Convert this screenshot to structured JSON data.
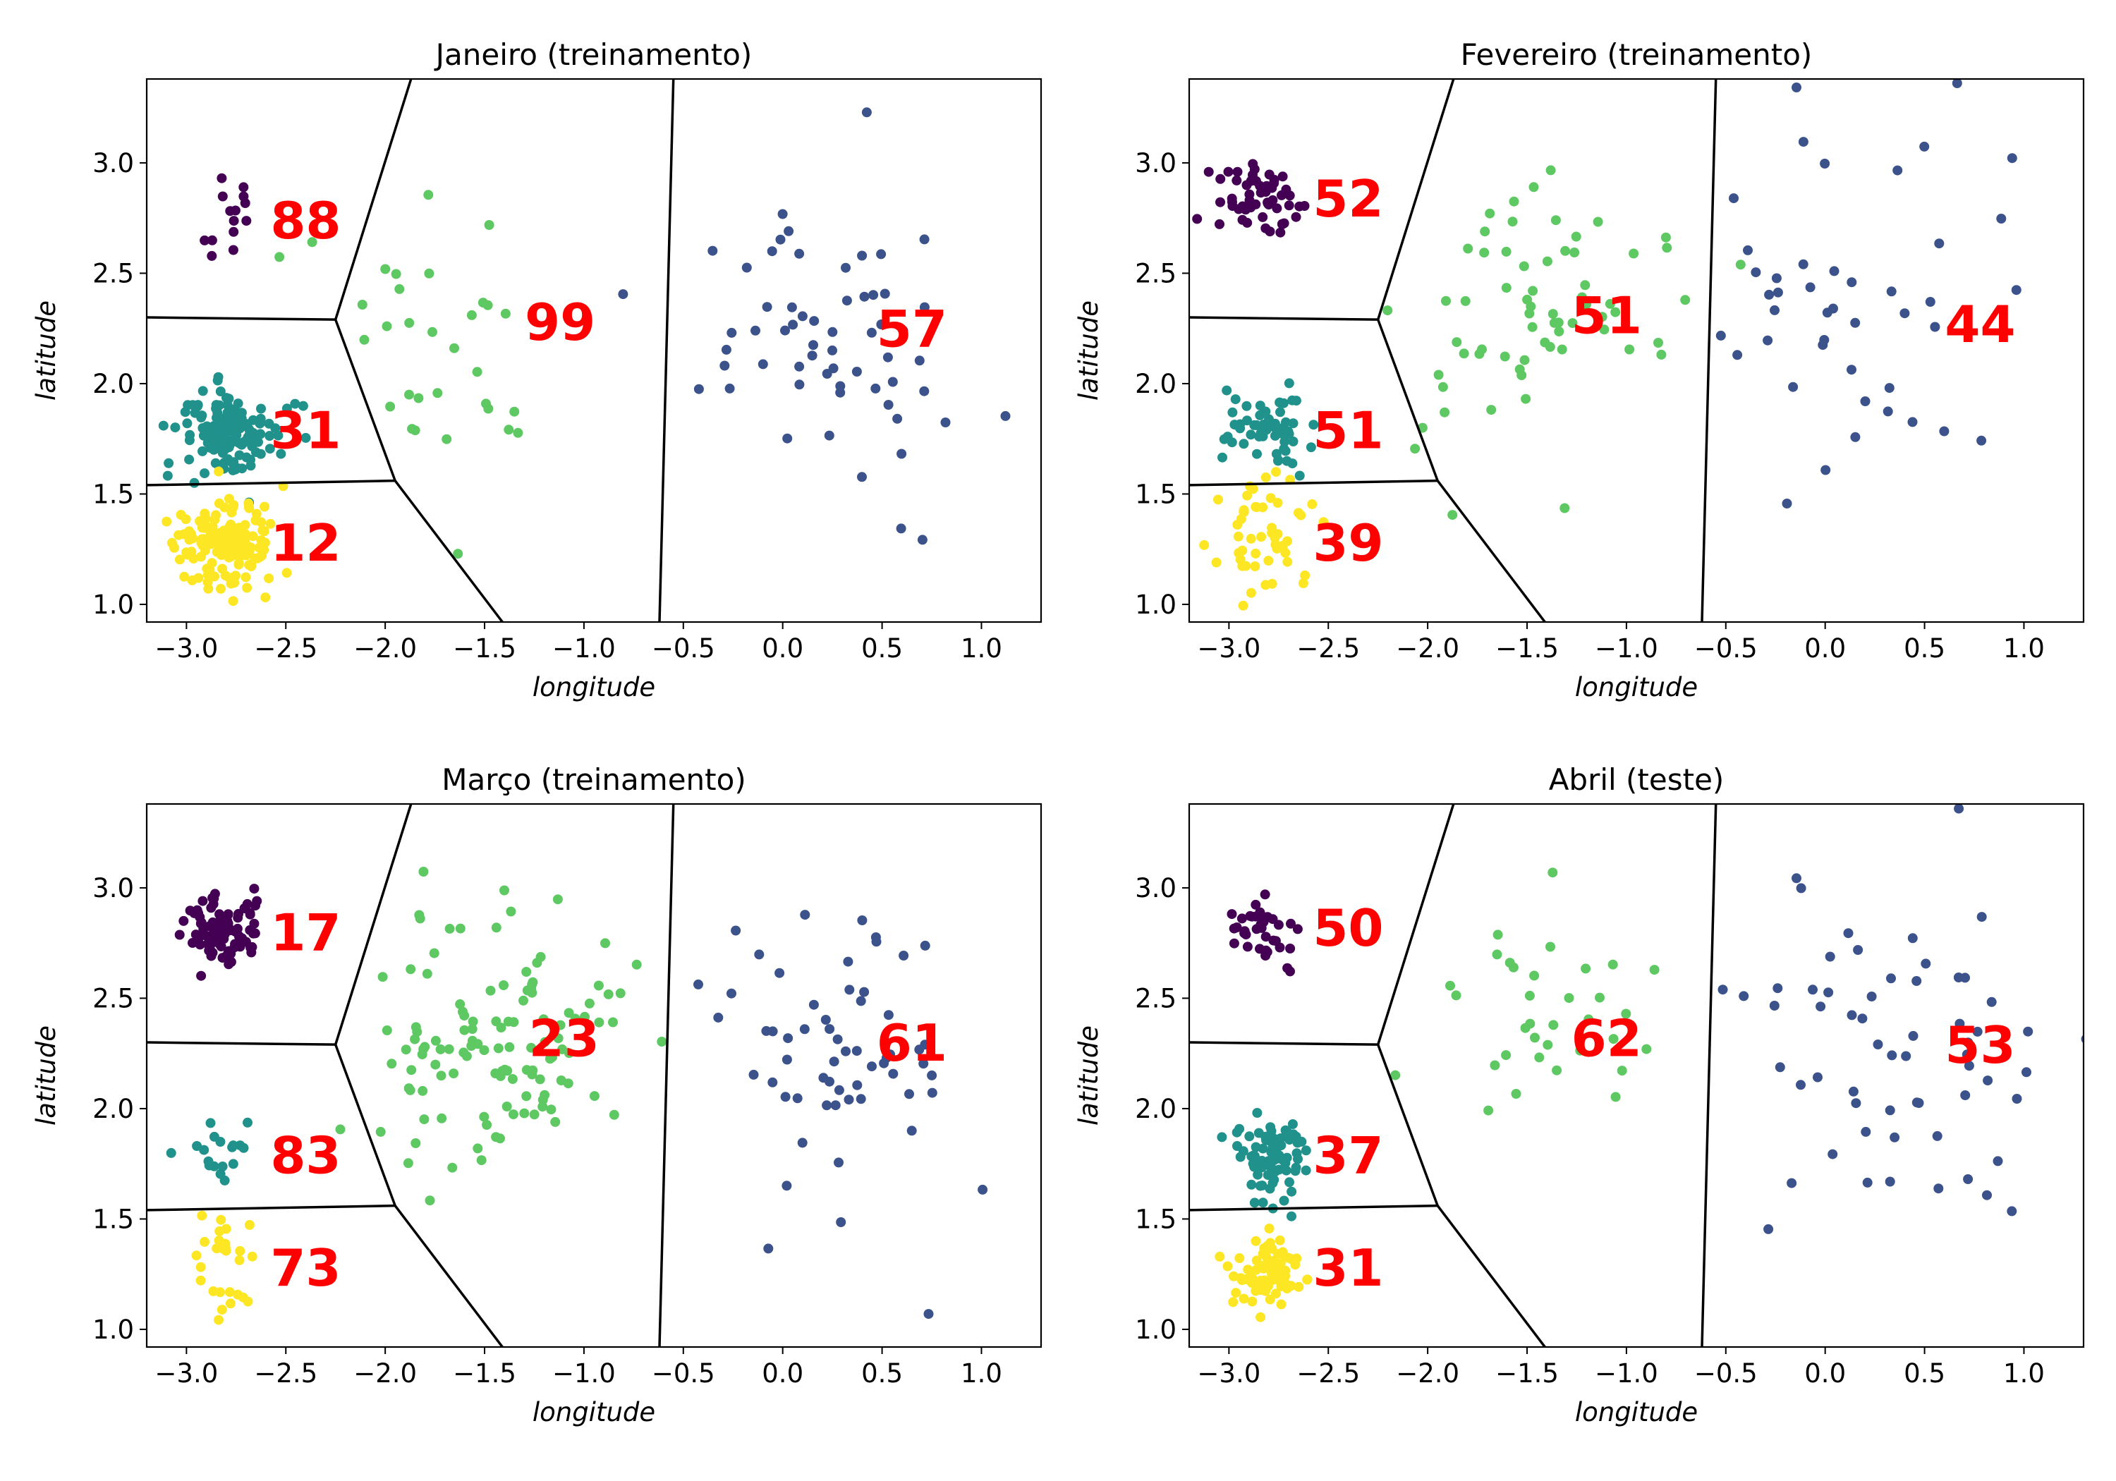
{
  "colors": {
    "cluster_0": "#440154",
    "cluster_1": "#3b528b",
    "cluster_2": "#21918c",
    "cluster_3": "#5ec962",
    "cluster_4": "#fde725",
    "boundary": "#000000",
    "count_label": "#ff0000"
  },
  "chart_data": [
    {
      "type": "scatter",
      "title": "Janeiro (treinamento)",
      "xlabel": "longitude",
      "ylabel": "latitude",
      "xlim": [
        -3.2,
        1.3
      ],
      "ylim": [
        0.92,
        3.38
      ],
      "xticks": [
        "−3.0",
        "−2.5",
        "−2.0",
        "−1.5",
        "−1.0",
        "−0.5",
        "0.0",
        "0.5",
        "1.0"
      ],
      "yticks": [
        "1.0",
        "1.5",
        "2.0",
        "2.5",
        "3.0"
      ],
      "grid": false,
      "boundaries": [
        [
          [
            -3.2,
            2.3
          ],
          [
            -2.25,
            2.29
          ]
        ],
        [
          [
            -2.25,
            2.29
          ],
          [
            -1.87,
            3.38
          ]
        ],
        [
          [
            -2.25,
            2.29
          ],
          [
            -1.95,
            1.56
          ]
        ],
        [
          [
            -3.2,
            1.54
          ],
          [
            -1.95,
            1.56
          ]
        ],
        [
          [
            -1.95,
            1.56
          ],
          [
            -1.41,
            0.92
          ]
        ],
        [
          [
            -0.55,
            3.38
          ],
          [
            -0.62,
            0.92
          ]
        ]
      ],
      "clusters": [
        {
          "id": 0,
          "color": "#440154",
          "center": [
            -2.8,
            2.75
          ],
          "spread": [
            0.08,
            0.14
          ],
          "n": 14,
          "seed": 11
        },
        {
          "id": 2,
          "color": "#21918c",
          "center": [
            -2.77,
            1.77
          ],
          "spread": [
            0.13,
            0.1
          ],
          "n": 130,
          "seed": 12
        },
        {
          "id": 4,
          "color": "#fde725",
          "center": [
            -2.8,
            1.27
          ],
          "spread": [
            0.13,
            0.1
          ],
          "n": 150,
          "seed": 13
        },
        {
          "id": 3,
          "color": "#5ec962",
          "center": [
            -1.6,
            2.2
          ],
          "spread": [
            0.32,
            0.3
          ],
          "n": 32,
          "seed": 14
        },
        {
          "id": 1,
          "color": "#3b528b",
          "center": [
            0.3,
            2.2
          ],
          "spread": [
            0.35,
            0.4
          ],
          "n": 60,
          "seed": 15
        }
      ],
      "counts": [
        {
          "label": "88",
          "x": -2.4,
          "y": 2.72
        },
        {
          "label": "99",
          "x": -1.12,
          "y": 2.26
        },
        {
          "label": "57",
          "x": 0.65,
          "y": 2.23
        },
        {
          "label": "31",
          "x": -2.4,
          "y": 1.77
        },
        {
          "label": "12",
          "x": -2.4,
          "y": 1.26
        }
      ]
    },
    {
      "type": "scatter",
      "title": "Fevereiro (treinamento)",
      "xlabel": "longitude",
      "ylabel": "latitude",
      "xlim": [
        -3.2,
        1.3
      ],
      "ylim": [
        0.92,
        3.38
      ],
      "xticks": [
        "−3.0",
        "−2.5",
        "−2.0",
        "−1.5",
        "−1.0",
        "−0.5",
        "0.0",
        "0.5",
        "1.0"
      ],
      "yticks": [
        "1.0",
        "1.5",
        "2.0",
        "2.5",
        "3.0"
      ],
      "grid": false,
      "boundaries": [
        [
          [
            -3.2,
            2.3
          ],
          [
            -2.25,
            2.29
          ]
        ],
        [
          [
            -2.25,
            2.29
          ],
          [
            -1.87,
            3.38
          ]
        ],
        [
          [
            -2.25,
            2.29
          ],
          [
            -1.95,
            1.56
          ]
        ],
        [
          [
            -3.2,
            1.54
          ],
          [
            -1.95,
            1.56
          ]
        ],
        [
          [
            -1.95,
            1.56
          ],
          [
            -1.41,
            0.92
          ]
        ],
        [
          [
            -0.55,
            3.38
          ],
          [
            -0.62,
            0.92
          ]
        ]
      ],
      "clusters": [
        {
          "id": 0,
          "color": "#440154",
          "center": [
            -2.83,
            2.82
          ],
          "spread": [
            0.13,
            0.08
          ],
          "n": 55,
          "seed": 21
        },
        {
          "id": 2,
          "color": "#21918c",
          "center": [
            -2.82,
            1.8
          ],
          "spread": [
            0.11,
            0.08
          ],
          "n": 55,
          "seed": 22
        },
        {
          "id": 4,
          "color": "#fde725",
          "center": [
            -2.8,
            1.3
          ],
          "spread": [
            0.12,
            0.12
          ],
          "n": 50,
          "seed": 23
        },
        {
          "id": 3,
          "color": "#5ec962",
          "center": [
            -1.5,
            2.25
          ],
          "spread": [
            0.35,
            0.35
          ],
          "n": 65,
          "seed": 24
        },
        {
          "id": 1,
          "color": "#3b528b",
          "center": [
            0.2,
            2.25
          ],
          "spread": [
            0.4,
            0.4
          ],
          "n": 45,
          "seed": 25
        }
      ],
      "counts": [
        {
          "label": "52",
          "x": -2.4,
          "y": 2.82
        },
        {
          "label": "51",
          "x": -1.1,
          "y": 2.29
        },
        {
          "label": "44",
          "x": 0.78,
          "y": 2.25
        },
        {
          "label": "51",
          "x": -2.4,
          "y": 1.77
        },
        {
          "label": "39",
          "x": -2.4,
          "y": 1.26
        }
      ]
    },
    {
      "type": "scatter",
      "title": "Março (treinamento)",
      "xlabel": "longitude",
      "ylabel": "latitude",
      "xlim": [
        -3.2,
        1.3
      ],
      "ylim": [
        0.92,
        3.38
      ],
      "xticks": [
        "−3.0",
        "−2.5",
        "−2.0",
        "−1.5",
        "−1.0",
        "−0.5",
        "0.0",
        "0.5",
        "1.0"
      ],
      "yticks": [
        "1.0",
        "1.5",
        "2.0",
        "2.5",
        "3.0"
      ],
      "grid": false,
      "boundaries": [
        [
          [
            -3.2,
            2.3
          ],
          [
            -2.25,
            2.29
          ]
        ],
        [
          [
            -2.25,
            2.29
          ],
          [
            -1.87,
            3.38
          ]
        ],
        [
          [
            -2.25,
            2.29
          ],
          [
            -1.95,
            1.56
          ]
        ],
        [
          [
            -3.2,
            1.54
          ],
          [
            -1.95,
            1.56
          ]
        ],
        [
          [
            -1.95,
            1.56
          ],
          [
            -1.41,
            0.92
          ]
        ],
        [
          [
            -0.55,
            3.38
          ],
          [
            -0.62,
            0.92
          ]
        ]
      ],
      "clusters": [
        {
          "id": 0,
          "color": "#440154",
          "center": [
            -2.82,
            2.8
          ],
          "spread": [
            0.1,
            0.08
          ],
          "n": 90,
          "seed": 31
        },
        {
          "id": 2,
          "color": "#21918c",
          "center": [
            -2.8,
            1.8
          ],
          "spread": [
            0.1,
            0.07
          ],
          "n": 18,
          "seed": 32
        },
        {
          "id": 4,
          "color": "#fde725",
          "center": [
            -2.82,
            1.27
          ],
          "spread": [
            0.07,
            0.13
          ],
          "n": 28,
          "seed": 33
        },
        {
          "id": 3,
          "color": "#5ec962",
          "center": [
            -1.45,
            2.3
          ],
          "spread": [
            0.35,
            0.3
          ],
          "n": 120,
          "seed": 34
        },
        {
          "id": 1,
          "color": "#3b528b",
          "center": [
            0.3,
            2.25
          ],
          "spread": [
            0.35,
            0.4
          ],
          "n": 60,
          "seed": 35
        }
      ],
      "counts": [
        {
          "label": "17",
          "x": -2.4,
          "y": 2.78
        },
        {
          "label": "23",
          "x": -1.1,
          "y": 2.3
        },
        {
          "label": "61",
          "x": 0.65,
          "y": 2.28
        },
        {
          "label": "83",
          "x": -2.4,
          "y": 1.77
        },
        {
          "label": "73",
          "x": -2.4,
          "y": 1.26
        }
      ]
    },
    {
      "type": "scatter",
      "title": "Abril (teste)",
      "xlabel": "longitude",
      "ylabel": "latitude",
      "xlim": [
        -3.2,
        1.3
      ],
      "ylim": [
        0.92,
        3.38
      ],
      "xticks": [
        "−3.0",
        "−2.5",
        "−2.0",
        "−1.5",
        "−1.0",
        "−0.5",
        "0.0",
        "0.5",
        "1.0"
      ],
      "yticks": [
        "1.0",
        "1.5",
        "2.0",
        "2.5",
        "3.0"
      ],
      "grid": false,
      "boundaries": [
        [
          [
            -3.2,
            2.3
          ],
          [
            -2.25,
            2.29
          ]
        ],
        [
          [
            -2.25,
            2.29
          ],
          [
            -1.87,
            3.38
          ]
        ],
        [
          [
            -2.25,
            2.29
          ],
          [
            -1.95,
            1.56
          ]
        ],
        [
          [
            -3.2,
            1.54
          ],
          [
            -1.95,
            1.56
          ]
        ],
        [
          [
            -1.95,
            1.56
          ],
          [
            -1.41,
            0.92
          ]
        ],
        [
          [
            -0.55,
            3.38
          ],
          [
            -0.62,
            0.92
          ]
        ]
      ],
      "clusters": [
        {
          "id": 0,
          "color": "#440154",
          "center": [
            -2.82,
            2.8
          ],
          "spread": [
            0.1,
            0.07
          ],
          "n": 40,
          "seed": 41
        },
        {
          "id": 2,
          "color": "#21918c",
          "center": [
            -2.8,
            1.78
          ],
          "spread": [
            0.1,
            0.1
          ],
          "n": 80,
          "seed": 42
        },
        {
          "id": 4,
          "color": "#fde725",
          "center": [
            -2.82,
            1.27
          ],
          "spread": [
            0.1,
            0.08
          ],
          "n": 80,
          "seed": 43
        },
        {
          "id": 3,
          "color": "#5ec962",
          "center": [
            -1.4,
            2.35
          ],
          "spread": [
            0.3,
            0.3
          ],
          "n": 35,
          "seed": 44
        },
        {
          "id": 1,
          "color": "#3b528b",
          "center": [
            0.3,
            2.3
          ],
          "spread": [
            0.4,
            0.4
          ],
          "n": 60,
          "seed": 45
        }
      ],
      "counts": [
        {
          "label": "50",
          "x": -2.4,
          "y": 2.8
        },
        {
          "label": "62",
          "x": -1.1,
          "y": 2.3
        },
        {
          "label": "53",
          "x": 0.78,
          "y": 2.27
        },
        {
          "label": "37",
          "x": -2.4,
          "y": 1.77
        },
        {
          "label": "31",
          "x": -2.4,
          "y": 1.26
        }
      ]
    }
  ]
}
